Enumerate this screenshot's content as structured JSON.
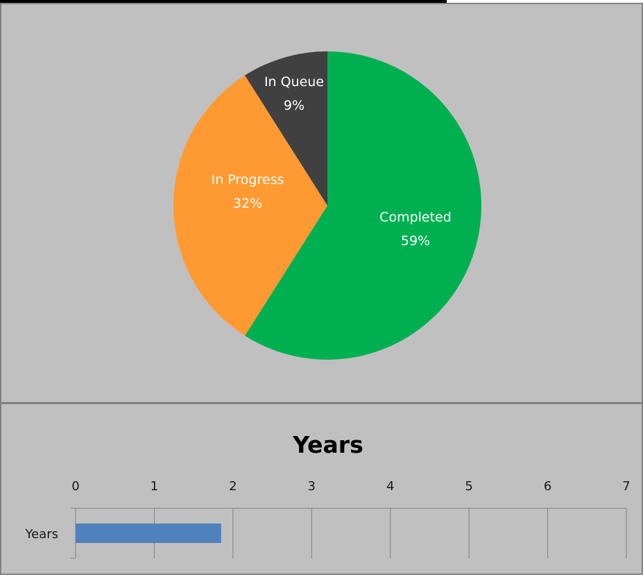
{
  "chart_data": [
    {
      "type": "pie",
      "slices": [
        {
          "label": "Completed",
          "percent_label": "59%",
          "value": 59,
          "color": "#00b050"
        },
        {
          "label": "In Progress",
          "percent_label": "32%",
          "value": 32,
          "color": "#ff9a33"
        },
        {
          "label": "In Queue",
          "percent_label": "9%",
          "value": 9,
          "color": "#404040"
        }
      ],
      "start_angle_deg": 0,
      "direction": "clockwise"
    },
    {
      "type": "bar",
      "orientation": "horizontal",
      "title": "Years",
      "categories": [
        "Years"
      ],
      "values": [
        1.85
      ],
      "xlim": [
        0,
        7
      ],
      "xticks": [
        "0",
        "1",
        "2",
        "3",
        "4",
        "5",
        "6",
        "7"
      ],
      "bar_color": "#4f81bd",
      "grid": true,
      "x_axis_position": "top"
    }
  ],
  "colors": {
    "panel_background": "#c0c0c0",
    "panel_border": "#808080"
  }
}
